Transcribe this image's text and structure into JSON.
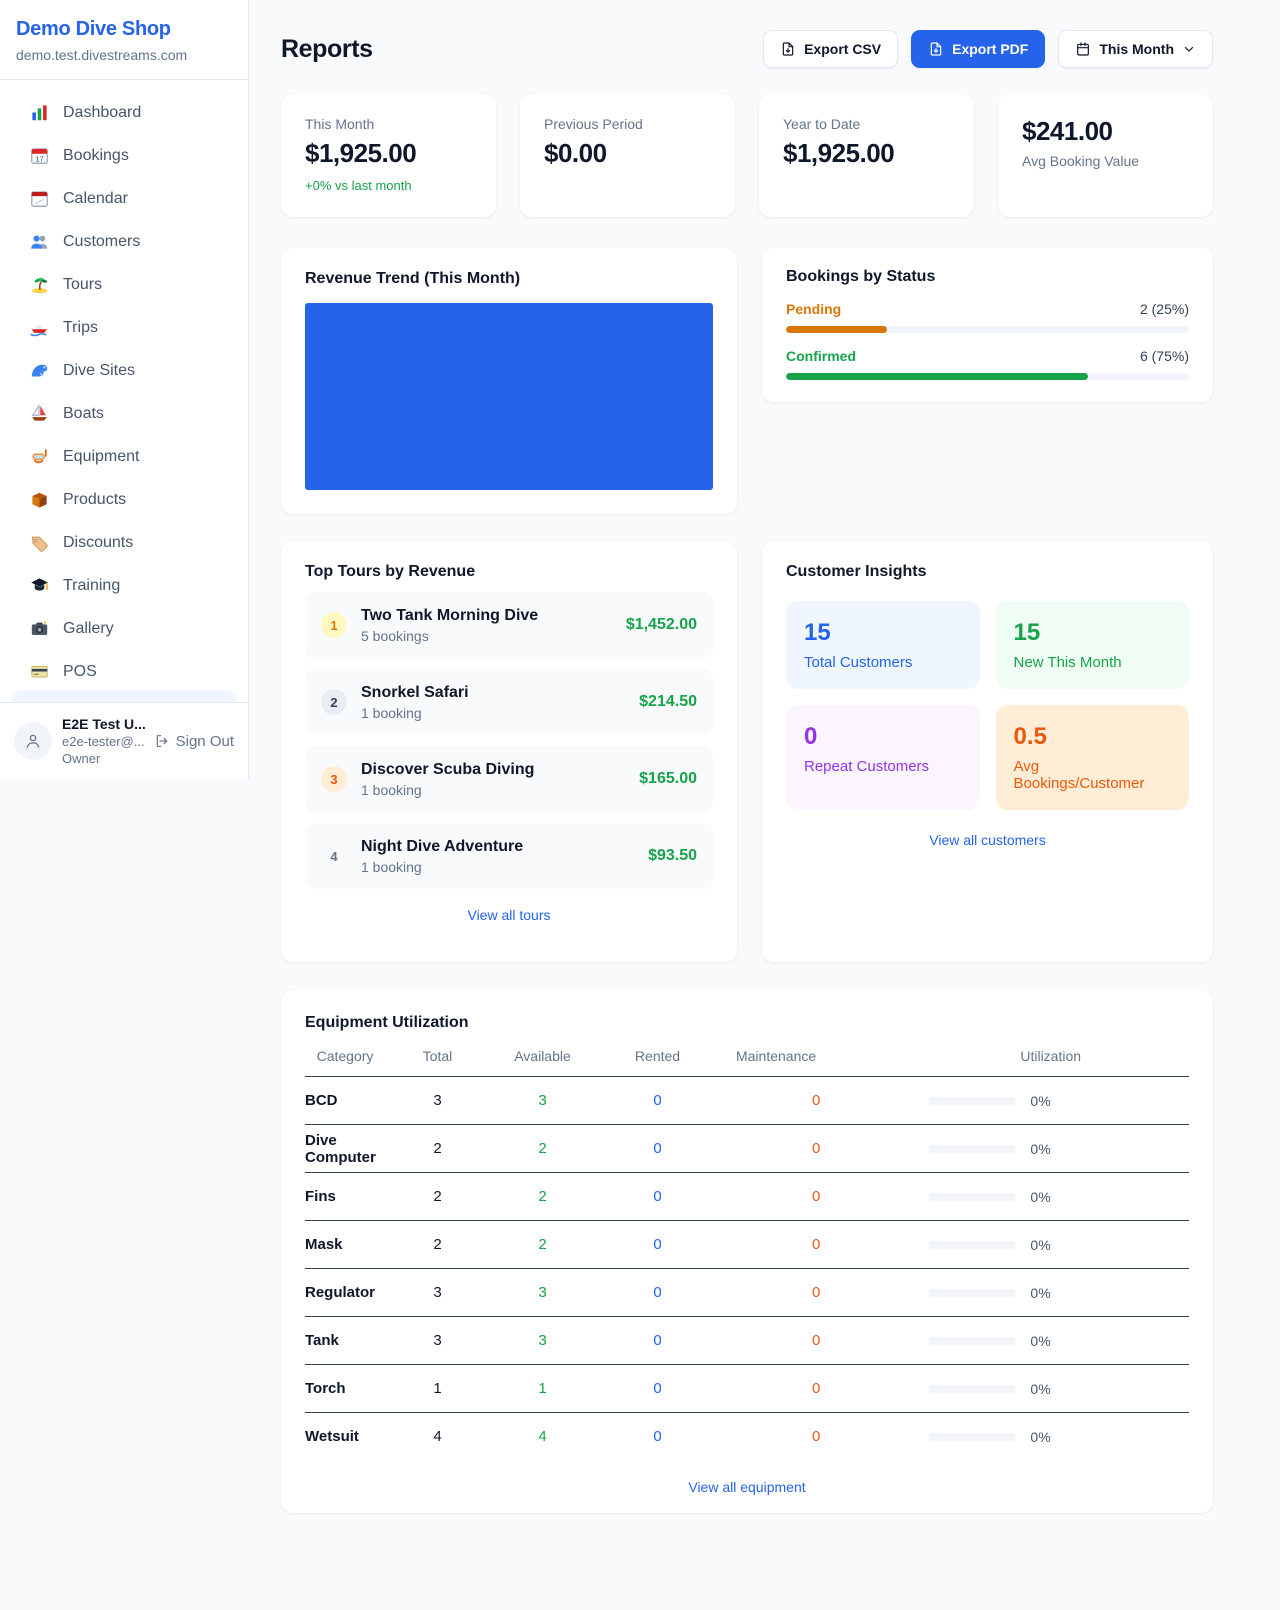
{
  "sidebar": {
    "shop_name": "Demo Dive Shop",
    "shop_domain": "demo.test.divestreams.com",
    "items": [
      {
        "icon": "dashboard",
        "label": "Dashboard"
      },
      {
        "icon": "bookings",
        "label": "Bookings"
      },
      {
        "icon": "calendar",
        "label": "Calendar"
      },
      {
        "icon": "customers",
        "label": "Customers"
      },
      {
        "icon": "tours",
        "label": "Tours"
      },
      {
        "icon": "trips",
        "label": "Trips"
      },
      {
        "icon": "dive-sites",
        "label": "Dive Sites"
      },
      {
        "icon": "boats",
        "label": "Boats"
      },
      {
        "icon": "equipment",
        "label": "Equipment"
      },
      {
        "icon": "products",
        "label": "Products"
      },
      {
        "icon": "discounts",
        "label": "Discounts"
      },
      {
        "icon": "training",
        "label": "Training"
      },
      {
        "icon": "gallery",
        "label": "Gallery"
      },
      {
        "icon": "pos",
        "label": "POS"
      }
    ],
    "user": {
      "name": "E2E Test U...",
      "email": "e2e-tester@...",
      "role": "Owner",
      "sign_out_label": "Sign Out"
    }
  },
  "header": {
    "title": "Reports",
    "export_csv": "Export CSV",
    "export_pdf": "Export PDF",
    "period": "This Month"
  },
  "stats": [
    {
      "label": "This Month",
      "value": "$1,925.00",
      "sub": "+0% vs last month"
    },
    {
      "label": "Previous Period",
      "value": "$0.00"
    },
    {
      "label": "Year to Date",
      "value": "$1,925.00"
    },
    {
      "label": "Avg Booking Value",
      "value": "$241.00",
      "variant": "value-first"
    }
  ],
  "revenue_trend": {
    "title": "Revenue Trend (This Month)",
    "bar_color": "#2563eb"
  },
  "bookings_by_status": {
    "title": "Bookings by Status",
    "rows": [
      {
        "label": "Pending",
        "value": "2 (25%)",
        "pct": 25,
        "color": "#d97706"
      },
      {
        "label": "Confirmed",
        "value": "6 (75%)",
        "pct": 75,
        "color": "#16a34a"
      }
    ]
  },
  "top_tours": {
    "title": "Top Tours by Revenue",
    "rows": [
      {
        "rank": "1",
        "rank_class": "gold",
        "name": "Two Tank Morning Dive",
        "bookings": "5 bookings",
        "revenue": "$1,452.00"
      },
      {
        "rank": "2",
        "rank_class": "silver",
        "name": "Snorkel Safari",
        "bookings": "1 booking",
        "revenue": "$214.50"
      },
      {
        "rank": "3",
        "rank_class": "bronze",
        "name": "Discover Scuba Diving",
        "bookings": "1 booking",
        "revenue": "$165.00"
      },
      {
        "rank": "4",
        "rank_class": "plain",
        "name": "Night Dive Adventure",
        "bookings": "1 booking",
        "revenue": "$93.50"
      }
    ],
    "link": "View all tours"
  },
  "customer_insights": {
    "title": "Customer Insights",
    "tiles": [
      {
        "value": "15",
        "label": "Total Customers",
        "theme": "blue"
      },
      {
        "value": "15",
        "label": "New This Month",
        "theme": "green"
      },
      {
        "value": "0",
        "label": "Repeat Customers",
        "theme": "purple"
      },
      {
        "value": "0.5",
        "label": "Avg Bookings/Customer",
        "theme": "orange"
      }
    ],
    "link": "View all customers"
  },
  "equipment": {
    "title": "Equipment Utilization",
    "columns": [
      "Category",
      "Total",
      "Available",
      "Rented",
      "Maintenance",
      "Utilization"
    ],
    "rows": [
      {
        "category": "BCD",
        "total": 3,
        "available": 3,
        "rented": 0,
        "maintenance": 0,
        "utilization": "0%"
      },
      {
        "category": "Dive Computer",
        "total": 2,
        "available": 2,
        "rented": 0,
        "maintenance": 0,
        "utilization": "0%"
      },
      {
        "category": "Fins",
        "total": 2,
        "available": 2,
        "rented": 0,
        "maintenance": 0,
        "utilization": "0%"
      },
      {
        "category": "Mask",
        "total": 2,
        "available": 2,
        "rented": 0,
        "maintenance": 0,
        "utilization": "0%"
      },
      {
        "category": "Regulator",
        "total": 3,
        "available": 3,
        "rented": 0,
        "maintenance": 0,
        "utilization": "0%"
      },
      {
        "category": "Tank",
        "total": 3,
        "available": 3,
        "rented": 0,
        "maintenance": 0,
        "utilization": "0%"
      },
      {
        "category": "Torch",
        "total": 1,
        "available": 1,
        "rented": 0,
        "maintenance": 0,
        "utilization": "0%"
      },
      {
        "category": "Wetsuit",
        "total": 4,
        "available": 4,
        "rented": 0,
        "maintenance": 0,
        "utilization": "0%"
      }
    ],
    "link": "View all equipment"
  },
  "chart_data": [
    {
      "type": "bar",
      "title": "Revenue Trend (This Month)",
      "categories": [
        "This Month"
      ],
      "values": [
        1925
      ],
      "bar_color": "#2563eb",
      "note": "single bar fills entire plot area; no axes or tick labels shown"
    },
    {
      "type": "bar",
      "title": "Bookings by Status",
      "categories": [
        "Pending",
        "Confirmed"
      ],
      "values": [
        2,
        6
      ],
      "labels": [
        "2 (25%)",
        "6 (75%)"
      ],
      "colors": [
        "#d97706",
        "#16a34a"
      ]
    }
  ]
}
